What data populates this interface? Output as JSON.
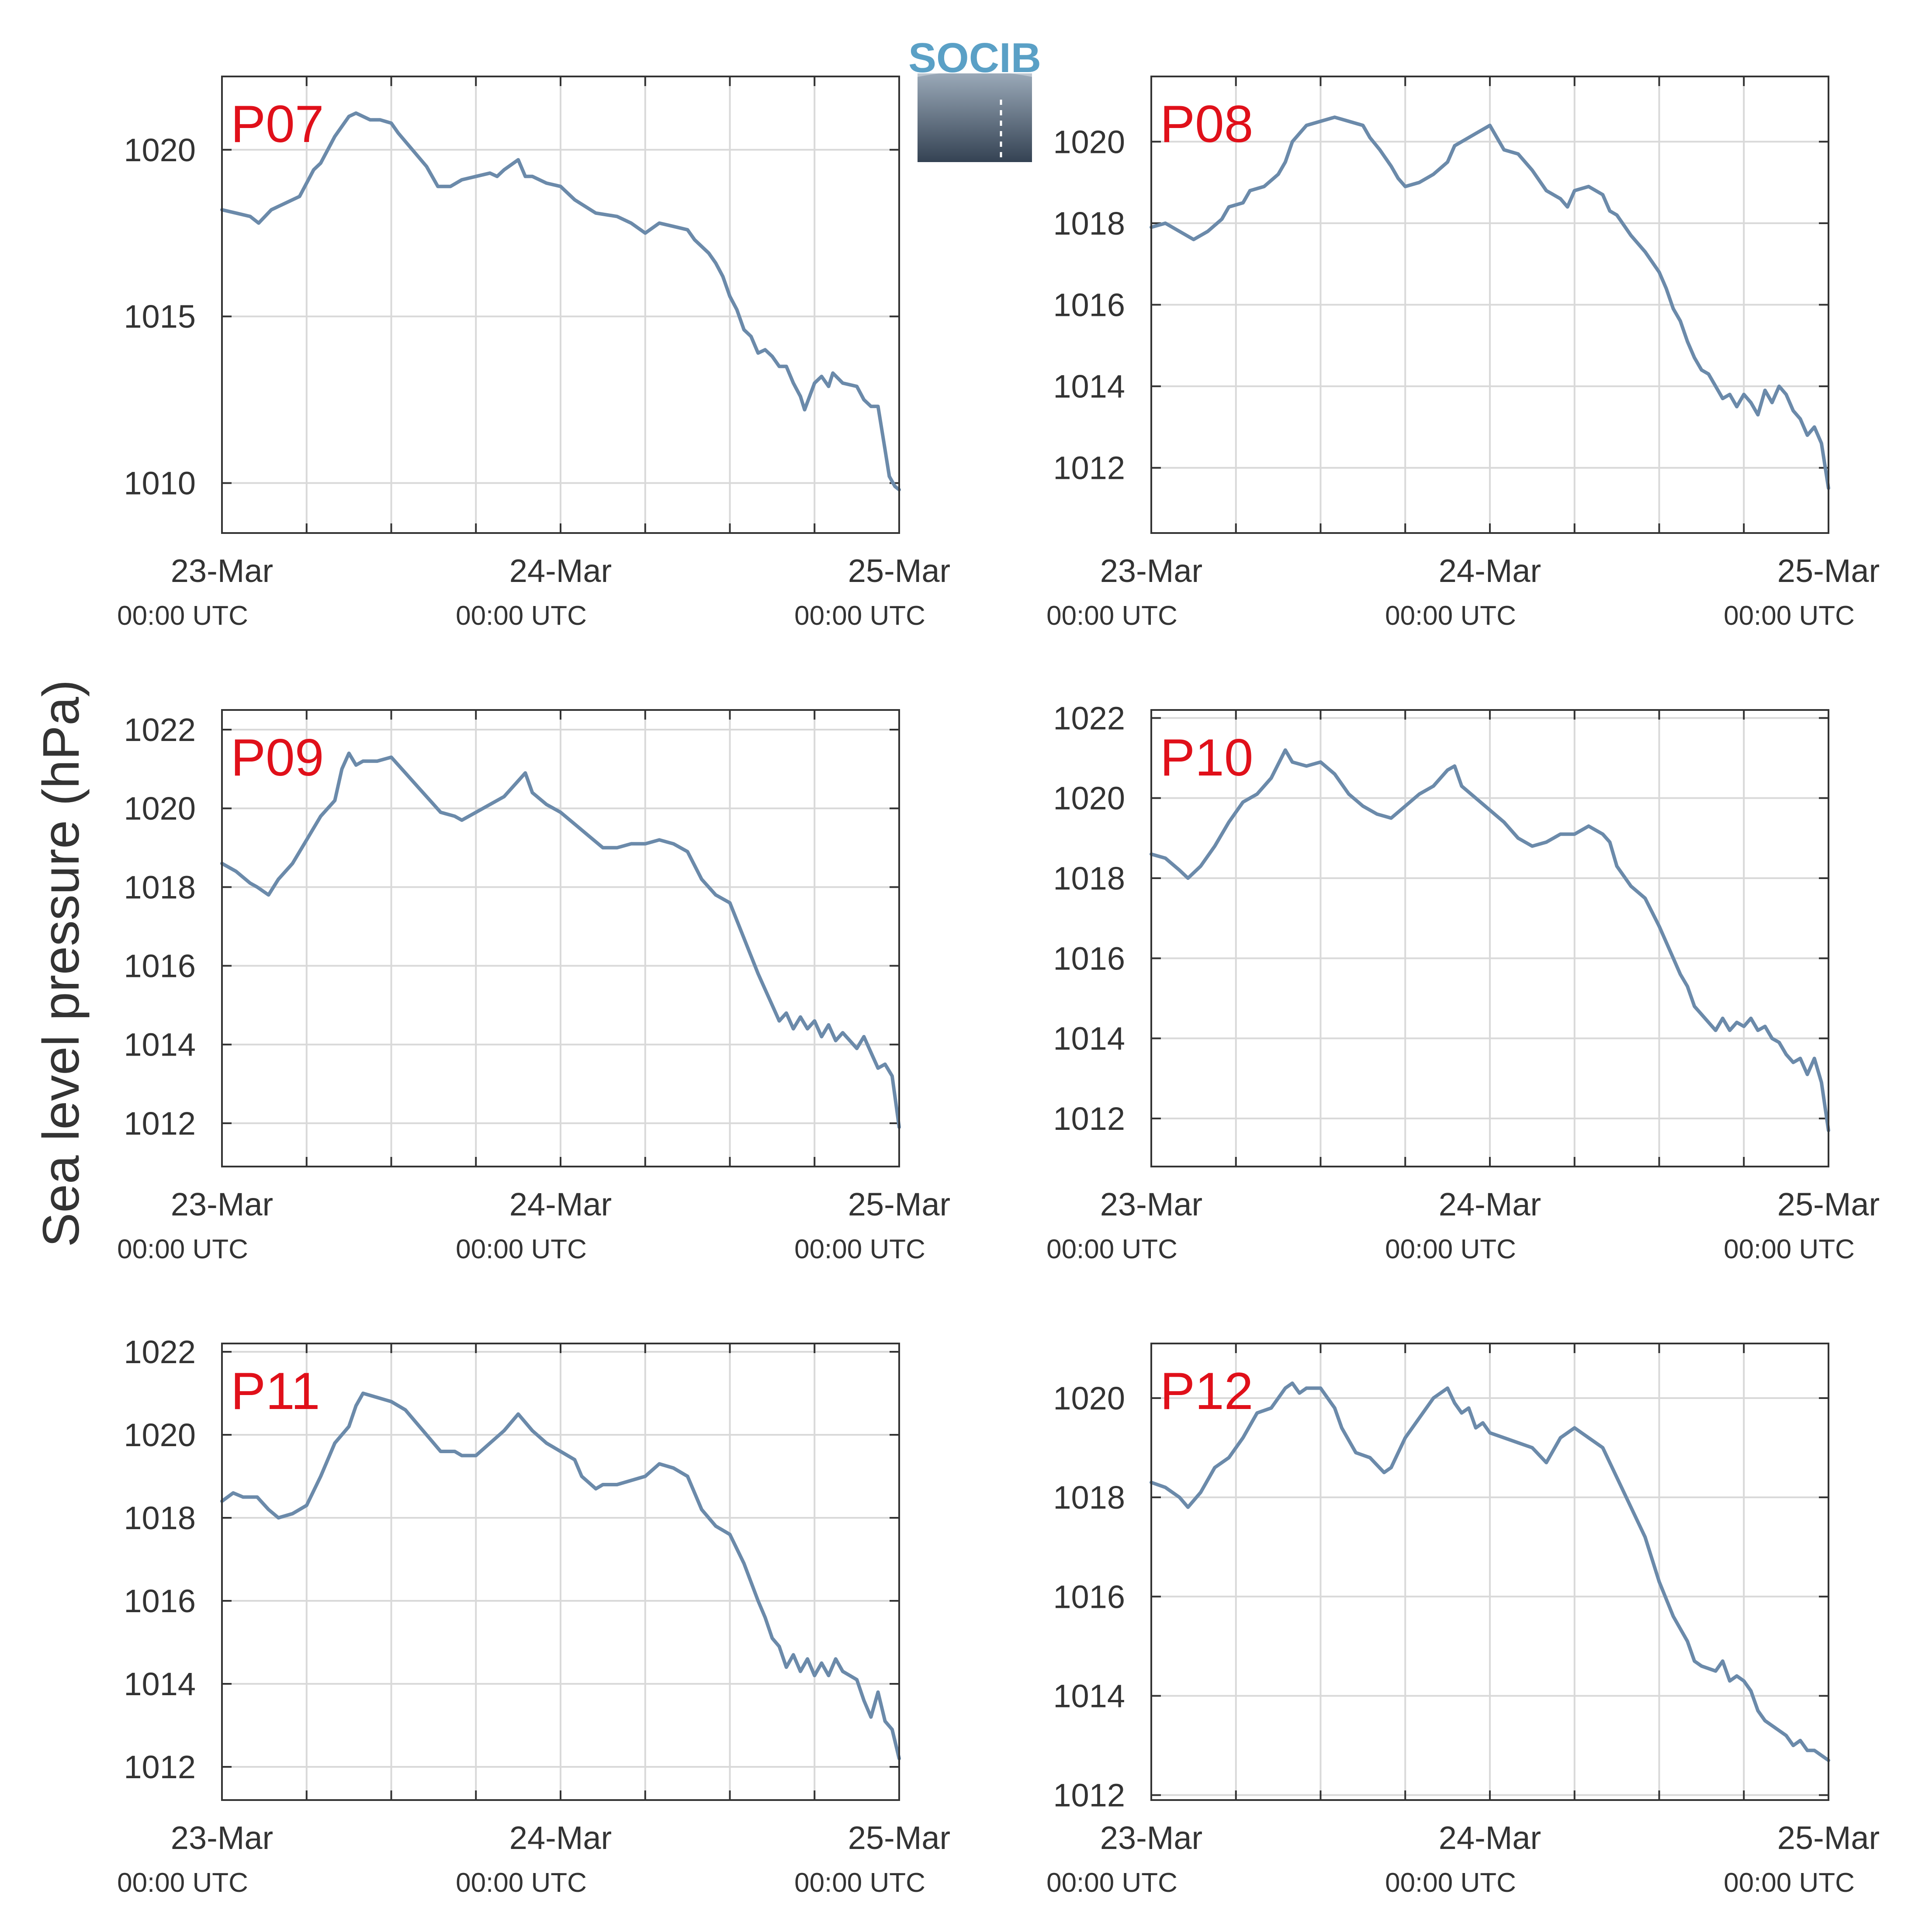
{
  "figure": {
    "ylabel": "Sea level pressure (hPa)",
    "logo": {
      "text": "SOCIB",
      "text_color": "#5aa0c6",
      "gradient_top": "#9aa9b8",
      "gradient_bottom": "#344253"
    },
    "line_color": "#6b8aaa",
    "label_color": "#e0101a",
    "grid_color": "#d9d9d9",
    "axis_color": "#333333"
  },
  "chart_data": [
    {
      "type": "line",
      "panel": "P07",
      "xlim": [
        0,
        48
      ],
      "x_ticks": [
        {
          "x": 0,
          "date": "23-Mar",
          "time": "00:00 UTC"
        },
        {
          "x": 24,
          "date": "24-Mar",
          "time": "00:00 UTC"
        },
        {
          "x": 48,
          "date": "25-Mar",
          "time": "00:00 UTC"
        }
      ],
      "minor_x_ticks": [
        6,
        12,
        18,
        30,
        36,
        42
      ],
      "ylim": [
        1008.5,
        1022.2
      ],
      "yticks": [
        1010,
        1015,
        1020
      ],
      "x": [
        0,
        1,
        2,
        2.6,
        3.5,
        4.5,
        5.5,
        6.5,
        7,
        8,
        9,
        9.5,
        10.5,
        11.2,
        12,
        12.5,
        13.5,
        14.5,
        15.3,
        16.2,
        17,
        18,
        19,
        19.5,
        20,
        21,
        21.5,
        22,
        23,
        24,
        25,
        26.5,
        28,
        29,
        30,
        31,
        32,
        33,
        33.5,
        34.5,
        35,
        35.5,
        36,
        36.5,
        37,
        37.5,
        38,
        38.5,
        39,
        39.5,
        40,
        40.5,
        41,
        41.3,
        42,
        42.5,
        43,
        43.3,
        44,
        45,
        45.5,
        46,
        46.5,
        47,
        47.3,
        47.7,
        48
      ],
      "values": [
        1018.2,
        1018.1,
        1018,
        1017.8,
        1018.2,
        1018.4,
        1018.6,
        1019.4,
        1019.6,
        1020.4,
        1021,
        1021.1,
        1020.9,
        1020.9,
        1020.8,
        1020.5,
        1020,
        1019.5,
        1018.9,
        1018.9,
        1019.1,
        1019.2,
        1019.3,
        1019.2,
        1019.4,
        1019.7,
        1019.2,
        1019.2,
        1019,
        1018.9,
        1018.5,
        1018.1,
        1018,
        1017.8,
        1017.5,
        1017.8,
        1017.7,
        1017.6,
        1017.3,
        1016.9,
        1016.6,
        1016.2,
        1015.6,
        1015.2,
        1014.6,
        1014.4,
        1013.9,
        1014,
        1013.8,
        1013.5,
        1013.5,
        1013,
        1012.6,
        1012.2,
        1013,
        1013.2,
        1012.9,
        1013.3,
        1013,
        1012.9,
        1012.5,
        1012.3,
        1012.3,
        1011,
        1010.2,
        1009.9,
        1009.8
      ]
    },
    {
      "type": "line",
      "panel": "P08",
      "xlim": [
        0,
        48
      ],
      "x_ticks": [
        {
          "x": 0,
          "date": "23-Mar",
          "time": "00:00 UTC"
        },
        {
          "x": 24,
          "date": "24-Mar",
          "time": "00:00 UTC"
        },
        {
          "x": 48,
          "date": "25-Mar",
          "time": "00:00 UTC"
        }
      ],
      "minor_x_ticks": [
        6,
        12,
        18,
        30,
        36,
        42
      ],
      "ylim": [
        1010.4,
        1021.6
      ],
      "yticks": [
        1012,
        1014,
        1016,
        1018,
        1020
      ],
      "x": [
        0,
        1,
        2,
        3,
        4,
        5,
        5.5,
        6.5,
        7,
        8,
        9,
        9.5,
        10,
        11,
        12,
        13,
        14,
        15,
        15.5,
        16.2,
        17,
        17.5,
        18,
        19,
        20,
        21,
        21.5,
        22,
        23,
        24,
        25,
        26,
        27,
        28,
        29,
        29.5,
        30,
        31,
        32,
        32.5,
        33,
        34,
        35,
        36,
        36.5,
        37,
        37.5,
        38,
        38.5,
        39,
        39.5,
        40,
        40.5,
        41,
        41.5,
        42,
        42.5,
        43,
        43.5,
        44,
        44.5,
        45,
        45.5,
        46,
        46.5,
        47,
        47.5,
        48
      ],
      "values": [
        1017.9,
        1018,
        1017.8,
        1017.6,
        1017.8,
        1018.1,
        1018.4,
        1018.5,
        1018.8,
        1018.9,
        1019.2,
        1019.5,
        1020,
        1020.4,
        1020.5,
        1020.6,
        1020.5,
        1020.4,
        1020.1,
        1019.8,
        1019.4,
        1019.1,
        1018.9,
        1019,
        1019.2,
        1019.5,
        1019.9,
        1020,
        1020.2,
        1020.4,
        1019.8,
        1019.7,
        1019.3,
        1018.8,
        1018.6,
        1018.4,
        1018.8,
        1018.9,
        1018.7,
        1018.3,
        1018.2,
        1017.7,
        1017.3,
        1016.8,
        1016.4,
        1015.9,
        1015.6,
        1015.1,
        1014.7,
        1014.4,
        1014.3,
        1014,
        1013.7,
        1013.8,
        1013.5,
        1013.8,
        1013.6,
        1013.3,
        1013.9,
        1013.6,
        1014,
        1013.8,
        1013.4,
        1013.2,
        1012.8,
        1013,
        1012.6,
        1011.5
      ]
    },
    {
      "type": "line",
      "panel": "P09",
      "xlim": [
        0,
        48
      ],
      "x_ticks": [
        {
          "x": 0,
          "date": "23-Mar",
          "time": "00:00 UTC"
        },
        {
          "x": 24,
          "date": "24-Mar",
          "time": "00:00 UTC"
        },
        {
          "x": 48,
          "date": "25-Mar",
          "time": "00:00 UTC"
        }
      ],
      "minor_x_ticks": [
        6,
        12,
        18,
        30,
        36,
        42
      ],
      "ylim": [
        1010.9,
        1022.5
      ],
      "yticks": [
        1012,
        1014,
        1016,
        1018,
        1020,
        1022
      ],
      "x": [
        0,
        1,
        2,
        2.5,
        3.3,
        4,
        5,
        6,
        7,
        8,
        8.5,
        9,
        9.5,
        10,
        11,
        12,
        13,
        14,
        15,
        15.5,
        16.5,
        17,
        18,
        19,
        20,
        21,
        21.5,
        22,
        23,
        24,
        25,
        26,
        27,
        28,
        29,
        30,
        31,
        32,
        33,
        34,
        35,
        36,
        37,
        38,
        38.5,
        39,
        39.5,
        40,
        40.5,
        41,
        41.5,
        42,
        42.5,
        43,
        43.5,
        44,
        44.5,
        45,
        45.5,
        46,
        46.5,
        47,
        47.5,
        48
      ],
      "values": [
        1018.6,
        1018.4,
        1018.1,
        1018,
        1017.8,
        1018.2,
        1018.6,
        1019.2,
        1019.8,
        1020.2,
        1021,
        1021.4,
        1021.1,
        1021.2,
        1021.2,
        1021.3,
        1020.9,
        1020.5,
        1020.1,
        1019.9,
        1019.8,
        1019.7,
        1019.9,
        1020.1,
        1020.3,
        1020.7,
        1020.9,
        1020.4,
        1020.1,
        1019.9,
        1019.6,
        1019.3,
        1019,
        1019,
        1019.1,
        1019.1,
        1019.2,
        1019.1,
        1018.9,
        1018.2,
        1017.8,
        1017.6,
        1016.7,
        1015.8,
        1015.4,
        1015,
        1014.6,
        1014.8,
        1014.4,
        1014.7,
        1014.4,
        1014.6,
        1014.2,
        1014.5,
        1014.1,
        1014.3,
        1014.1,
        1013.9,
        1014.2,
        1013.8,
        1013.4,
        1013.5,
        1013.2,
        1011.9
      ]
    },
    {
      "type": "line",
      "panel": "P10",
      "xlim": [
        0,
        48
      ],
      "x_ticks": [
        {
          "x": 0,
          "date": "23-Mar",
          "time": "00:00 UTC"
        },
        {
          "x": 24,
          "date": "24-Mar",
          "time": "00:00 UTC"
        },
        {
          "x": 48,
          "date": "25-Mar",
          "time": "00:00 UTC"
        }
      ],
      "minor_x_ticks": [
        6,
        12,
        18,
        30,
        36,
        42
      ],
      "ylim": [
        1010.8,
        1022.2
      ],
      "yticks": [
        1012,
        1014,
        1016,
        1018,
        1020,
        1022
      ],
      "x": [
        0,
        1,
        2,
        2.6,
        3.5,
        4.5,
        5.5,
        6.5,
        7.5,
        8.5,
        9.5,
        10,
        11,
        12,
        13,
        14,
        15,
        16,
        17,
        18,
        19,
        20,
        21,
        21.5,
        22,
        23,
        24,
        25,
        26,
        27,
        28,
        29,
        30,
        30.5,
        31,
        32,
        32.5,
        33,
        34,
        35,
        36,
        37,
        37.5,
        38,
        38.5,
        39,
        39.5,
        40,
        40.5,
        41,
        41.5,
        42,
        42.5,
        43,
        43.5,
        44,
        44.5,
        45,
        45.5,
        46,
        46.5,
        47,
        47.5,
        48
      ],
      "values": [
        1018.6,
        1018.5,
        1018.2,
        1018,
        1018.3,
        1018.8,
        1019.4,
        1019.9,
        1020.1,
        1020.5,
        1021.2,
        1020.9,
        1020.8,
        1020.9,
        1020.6,
        1020.1,
        1019.8,
        1019.6,
        1019.5,
        1019.8,
        1020.1,
        1020.3,
        1020.7,
        1020.8,
        1020.3,
        1020,
        1019.7,
        1019.4,
        1019,
        1018.8,
        1018.9,
        1019.1,
        1019.1,
        1019.2,
        1019.3,
        1019.1,
        1018.9,
        1018.3,
        1017.8,
        1017.5,
        1016.8,
        1016,
        1015.6,
        1015.3,
        1014.8,
        1014.6,
        1014.4,
        1014.2,
        1014.5,
        1014.2,
        1014.4,
        1014.3,
        1014.5,
        1014.2,
        1014.3,
        1014,
        1013.9,
        1013.6,
        1013.4,
        1013.5,
        1013.1,
        1013.5,
        1012.9,
        1011.7
      ]
    },
    {
      "type": "line",
      "panel": "P11",
      "xlim": [
        0,
        48
      ],
      "x_ticks": [
        {
          "x": 0,
          "date": "23-Mar",
          "time": "00:00 UTC"
        },
        {
          "x": 24,
          "date": "24-Mar",
          "time": "00:00 UTC"
        },
        {
          "x": 48,
          "date": "25-Mar",
          "time": "00:00 UTC"
        }
      ],
      "minor_x_ticks": [
        6,
        12,
        18,
        30,
        36,
        42
      ],
      "ylim": [
        1011.2,
        1022.2
      ],
      "yticks": [
        1012,
        1014,
        1016,
        1018,
        1020,
        1022
      ],
      "x": [
        0,
        0.8,
        1.5,
        2.5,
        3.3,
        4,
        5,
        6,
        7,
        8,
        9,
        9.5,
        10,
        11,
        12,
        13,
        14,
        15,
        15.5,
        16.5,
        17,
        18,
        19,
        20,
        21,
        21.5,
        22,
        23,
        24,
        25,
        25.5,
        26.5,
        27,
        28,
        29,
        30,
        31,
        32,
        33,
        34,
        35,
        36,
        37,
        38,
        38.5,
        39,
        39.5,
        40,
        40.5,
        41,
        41.5,
        42,
        42.5,
        43,
        43.5,
        44,
        44.5,
        45,
        45.5,
        46,
        46.5,
        47,
        47.5,
        48
      ],
      "values": [
        1018.4,
        1018.6,
        1018.5,
        1018.5,
        1018.2,
        1018,
        1018.1,
        1018.3,
        1019,
        1019.8,
        1020.2,
        1020.7,
        1021,
        1020.9,
        1020.8,
        1020.6,
        1020.2,
        1019.8,
        1019.6,
        1019.6,
        1019.5,
        1019.5,
        1019.8,
        1020.1,
        1020.5,
        1020.3,
        1020.1,
        1019.8,
        1019.6,
        1019.4,
        1019,
        1018.7,
        1018.8,
        1018.8,
        1018.9,
        1019,
        1019.3,
        1019.2,
        1019,
        1018.2,
        1017.8,
        1017.6,
        1016.9,
        1016,
        1015.6,
        1015.1,
        1014.9,
        1014.4,
        1014.7,
        1014.3,
        1014.6,
        1014.2,
        1014.5,
        1014.2,
        1014.6,
        1014.3,
        1014.2,
        1014.1,
        1013.6,
        1013.2,
        1013.8,
        1013.1,
        1012.9,
        1012.2
      ]
    },
    {
      "type": "line",
      "panel": "P12",
      "xlim": [
        0,
        48
      ],
      "x_ticks": [
        {
          "x": 0,
          "date": "23-Mar",
          "time": "00:00 UTC"
        },
        {
          "x": 24,
          "date": "24-Mar",
          "time": "00:00 UTC"
        },
        {
          "x": 48,
          "date": "25-Mar",
          "time": "00:00 UTC"
        }
      ],
      "minor_x_ticks": [
        6,
        12,
        18,
        30,
        36,
        42
      ],
      "ylim": [
        1011.9,
        1021.1
      ],
      "yticks": [
        1012,
        1014,
        1016,
        1018,
        1020
      ],
      "x": [
        0,
        1,
        2,
        2.6,
        3.5,
        4.5,
        5.5,
        6.5,
        7.5,
        8.5,
        9.5,
        10,
        10.5,
        11,
        12,
        13,
        13.5,
        14.5,
        15.5,
        16.5,
        17,
        17.5,
        18,
        19,
        20,
        21,
        21.5,
        22,
        22.5,
        23,
        23.5,
        24,
        25,
        26,
        27,
        28,
        29,
        30,
        30.5,
        31,
        32,
        33,
        34,
        35,
        36,
        37,
        38,
        38.5,
        39,
        40,
        40.5,
        41,
        41.5,
        42,
        42.5,
        43,
        43.5,
        44,
        44.5,
        45,
        45.5,
        46,
        46.5,
        47,
        47.5,
        48
      ],
      "values": [
        1018.3,
        1018.2,
        1018,
        1017.8,
        1018.1,
        1018.6,
        1018.8,
        1019.2,
        1019.7,
        1019.8,
        1020.2,
        1020.3,
        1020.1,
        1020.2,
        1020.2,
        1019.8,
        1019.4,
        1018.9,
        1018.8,
        1018.5,
        1018.6,
        1018.9,
        1019.2,
        1019.6,
        1020,
        1020.2,
        1019.9,
        1019.7,
        1019.8,
        1019.4,
        1019.5,
        1019.3,
        1019.2,
        1019.1,
        1019,
        1018.7,
        1019.2,
        1019.4,
        1019.3,
        1019.2,
        1019,
        1018.4,
        1017.8,
        1017.2,
        1016.3,
        1015.6,
        1015.1,
        1014.7,
        1014.6,
        1014.5,
        1014.7,
        1014.3,
        1014.4,
        1014.3,
        1014.1,
        1013.7,
        1013.5,
        1013.4,
        1013.3,
        1013.2,
        1013,
        1013.1,
        1012.9,
        1012.9,
        1012.8,
        1012.7
      ]
    }
  ]
}
